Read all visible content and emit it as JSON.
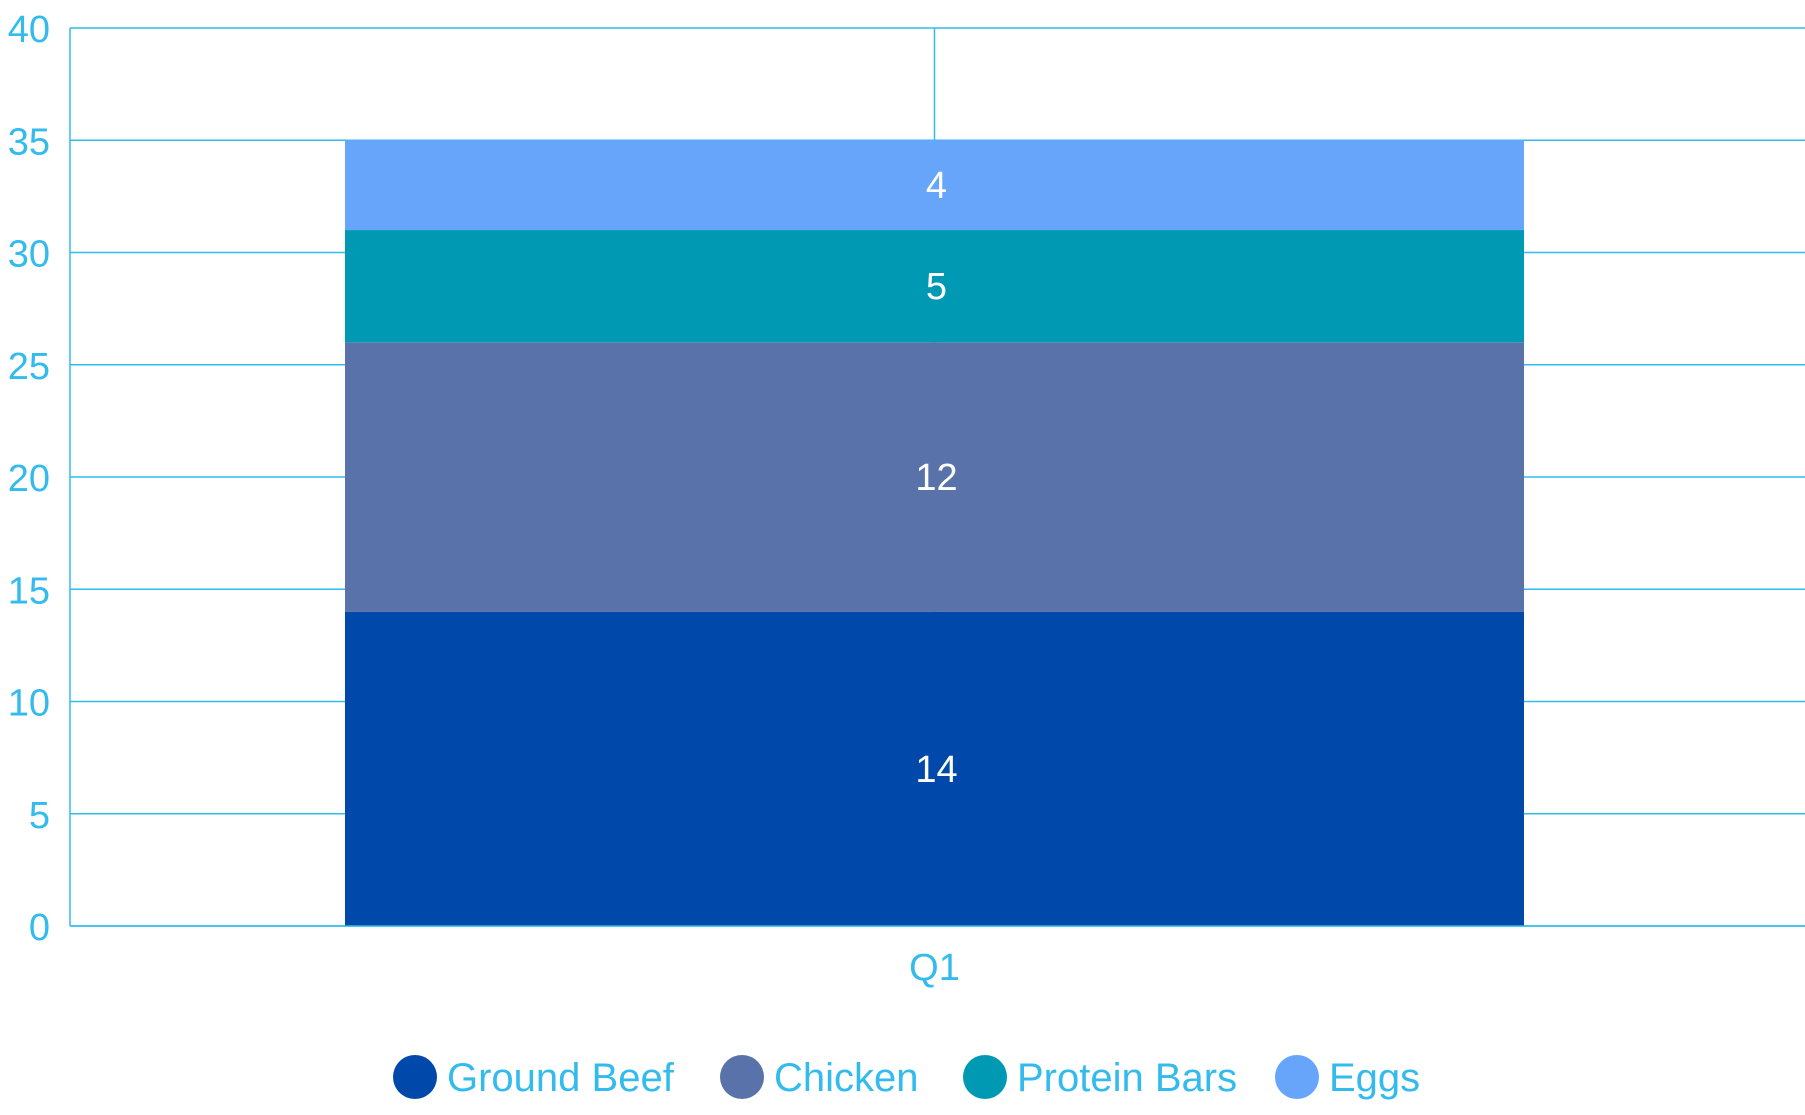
{
  "chart_data": {
    "type": "bar",
    "stacked": true,
    "categories": [
      "Q1"
    ],
    "series": [
      {
        "name": "Ground Beef",
        "values": [
          14
        ],
        "color": "#0049ab"
      },
      {
        "name": "Chicken",
        "values": [
          12
        ],
        "color": "#5972a9"
      },
      {
        "name": "Protein Bars",
        "values": [
          5
        ],
        "color": "#0099b3"
      },
      {
        "name": "Eggs",
        "values": [
          4
        ],
        "color": "#66a5fa"
      }
    ],
    "ylim": [
      0,
      40
    ],
    "yticks": [
      "0",
      "5",
      "10",
      "15",
      "20",
      "25",
      "30",
      "35",
      "40"
    ],
    "grid": true,
    "legend_position": "bottom",
    "data_labels": true,
    "colors": {
      "axis_text": "#33bbee",
      "grid": "#33bbee"
    }
  }
}
